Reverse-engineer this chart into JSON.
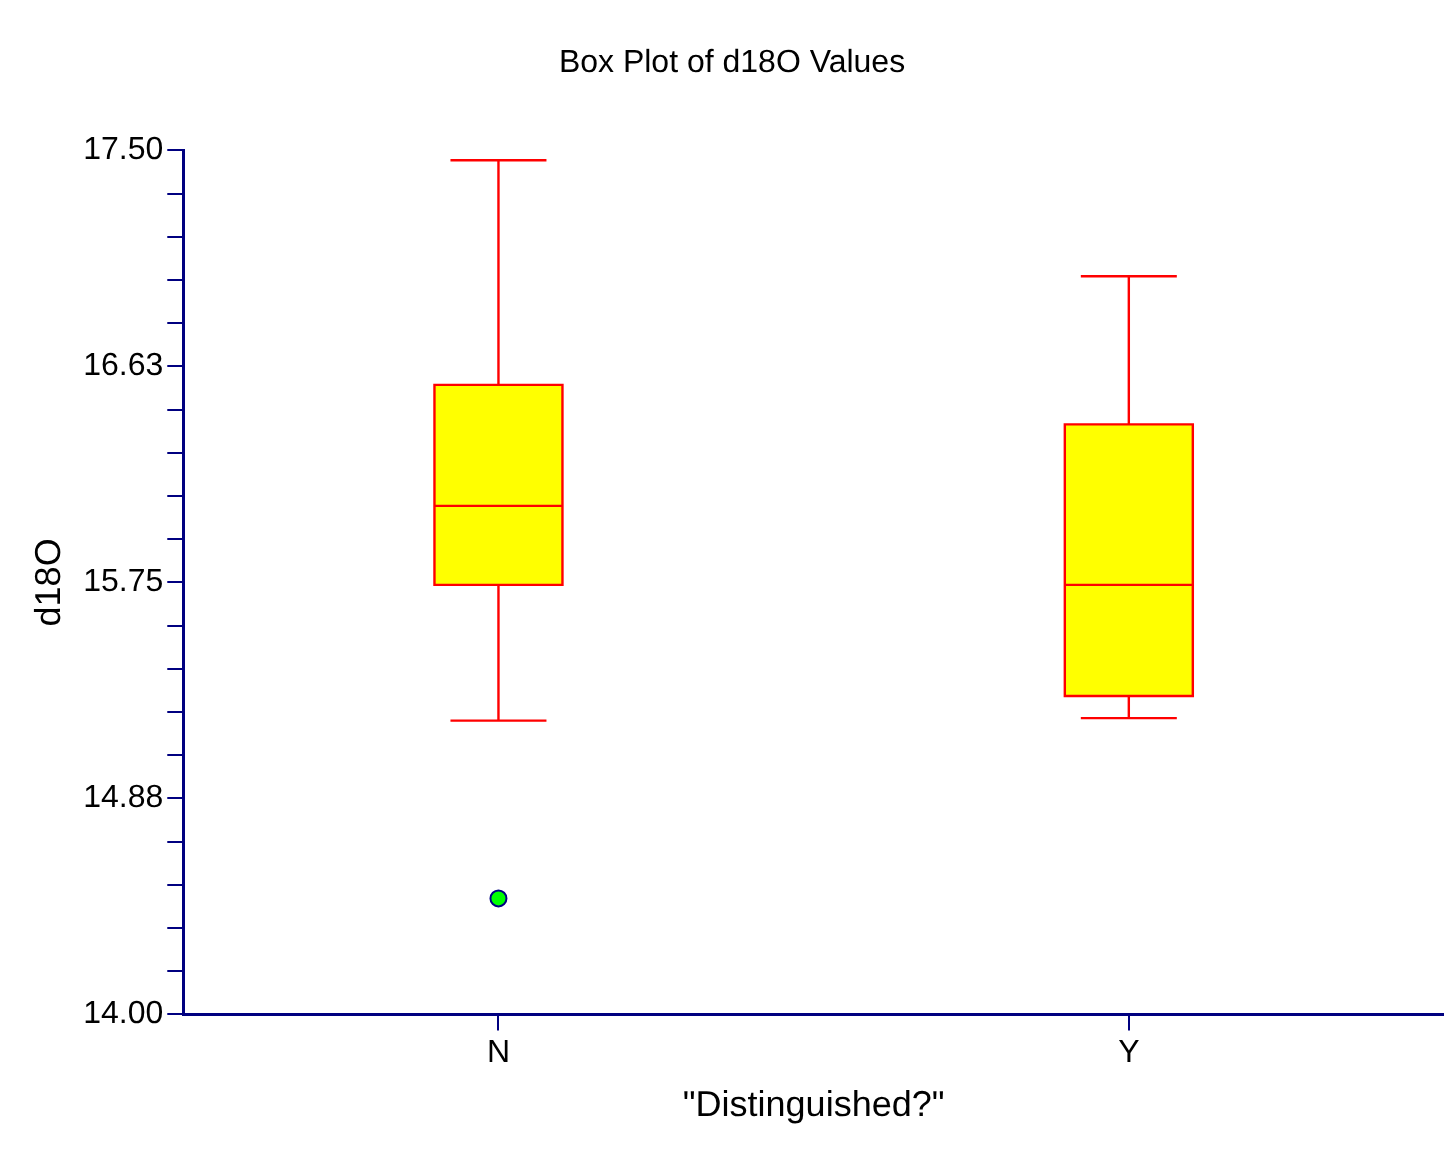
{
  "chart_data": {
    "type": "box",
    "title": "Box Plot of d18O Values",
    "xlabel": "\"Distinguished?\"",
    "ylabel": "d18O",
    "categories": [
      "N",
      "Y"
    ],
    "color": "#ffff00",
    "boxes": [
      {
        "low": 15.19,
        "q1": 15.74,
        "median": 16.06,
        "q3": 16.55,
        "high": 17.46,
        "outliers": [
          14.47
        ]
      },
      {
        "low": 15.2,
        "q1": 15.29,
        "median": 15.74,
        "q3": 16.39,
        "high": 16.99
      }
    ],
    "ylim": [
      14,
      17.5
    ],
    "yticks": [
      {
        "value": 14,
        "label": "14.00"
      },
      {
        "value": 14.175,
        "label": null
      },
      {
        "value": 14.35,
        "label": null
      },
      {
        "value": 14.525,
        "label": null
      },
      {
        "value": 14.7,
        "label": null
      },
      {
        "value": 14.875,
        "label": "14.88"
      },
      {
        "value": 15.05,
        "label": null
      },
      {
        "value": 15.225,
        "label": null
      },
      {
        "value": 15.4,
        "label": null
      },
      {
        "value": 15.575,
        "label": null
      },
      {
        "value": 15.75,
        "label": "15.75"
      },
      {
        "value": 15.925,
        "label": null
      },
      {
        "value": 16.1,
        "label": null
      },
      {
        "value": 16.275,
        "label": null
      },
      {
        "value": 16.45,
        "label": null
      },
      {
        "value": 16.625,
        "label": "16.63"
      },
      {
        "value": 16.8,
        "label": null
      },
      {
        "value": 16.975,
        "label": null
      },
      {
        "value": 17.15,
        "label": null
      },
      {
        "value": 17.325,
        "label": null
      },
      {
        "value": 17.5,
        "label": "17.50"
      }
    ],
    "grid": false
  }
}
